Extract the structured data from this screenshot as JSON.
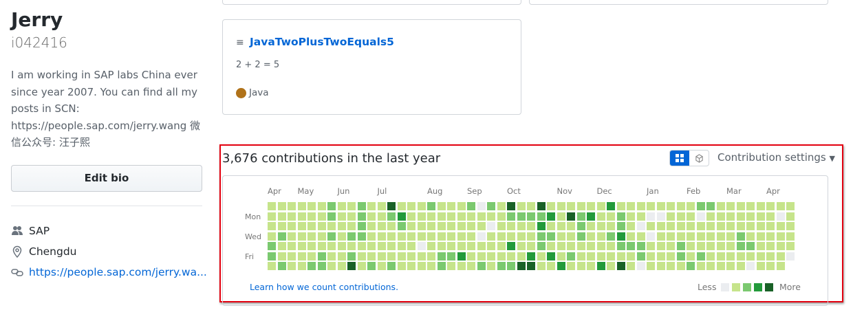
{
  "profile": {
    "name": "Jerry",
    "login": "i042416",
    "bio": "I am working in SAP labs China ever since year 2007. You can find all my posts in SCN: https://people.sap.com/jerry.wang 微信公众号: 汪子熙",
    "edit_bio_label": "Edit bio",
    "company": "SAP",
    "location": "Chengdu",
    "website": "https://people.sap.com/jerry.wa..."
  },
  "pinned_repo": {
    "name": "JavaTwoPlusTwoEquals5",
    "description": "2 + 2 = 5",
    "language": "Java",
    "language_color": "#b07219"
  },
  "contributions": {
    "title": "3,676 contributions in the last year",
    "settings_label": "Contribution settings",
    "learn_link": "Learn how we count contributions.",
    "less_label": "Less",
    "more_label": "More",
    "months": [
      "Apr",
      "May",
      "Jun",
      "Jul",
      "Aug",
      "Sep",
      "Oct",
      "Nov",
      "Dec",
      "Jan",
      "Feb",
      "Mar",
      "Apr"
    ],
    "day_labels": [
      "Mon",
      "Wed",
      "Fri"
    ],
    "level_colors": [
      "#ebedf0",
      "#c6e48b",
      "#7bc96f",
      "#239a3b",
      "#196127"
    ],
    "weeks_levels": [
      "1111221",
      "1112112",
      "1111111",
      "1111111",
      "1111112",
      "1111122",
      "2212111",
      "1111111",
      "1112124",
      "2222111",
      "1111112",
      "1111111",
      "4211112",
      "1321111",
      "1111111",
      "1111011",
      "2111111",
      "1111122",
      "1111121",
      "1111131",
      "2111111",
      "0110112",
      "2101111",
      "1111112",
      "4211312",
      "1211114",
      "1211134",
      "4232211",
      "1312131",
      "1111113",
      "1411121",
      "1222111",
      "1311111",
      "1111113",
      "3112111",
      "1223214",
      "1111211",
      "1101220",
      "1010111",
      "1011111",
      "1111111",
      "1111221",
      "1111112",
      "2011121",
      "2111111",
      "1111111",
      "1111111",
      "1112211",
      "1111210",
      "1111111",
      "1111111",
      "1011111",
      "111110"
    ]
  },
  "highlight_color": "#e3000f"
}
